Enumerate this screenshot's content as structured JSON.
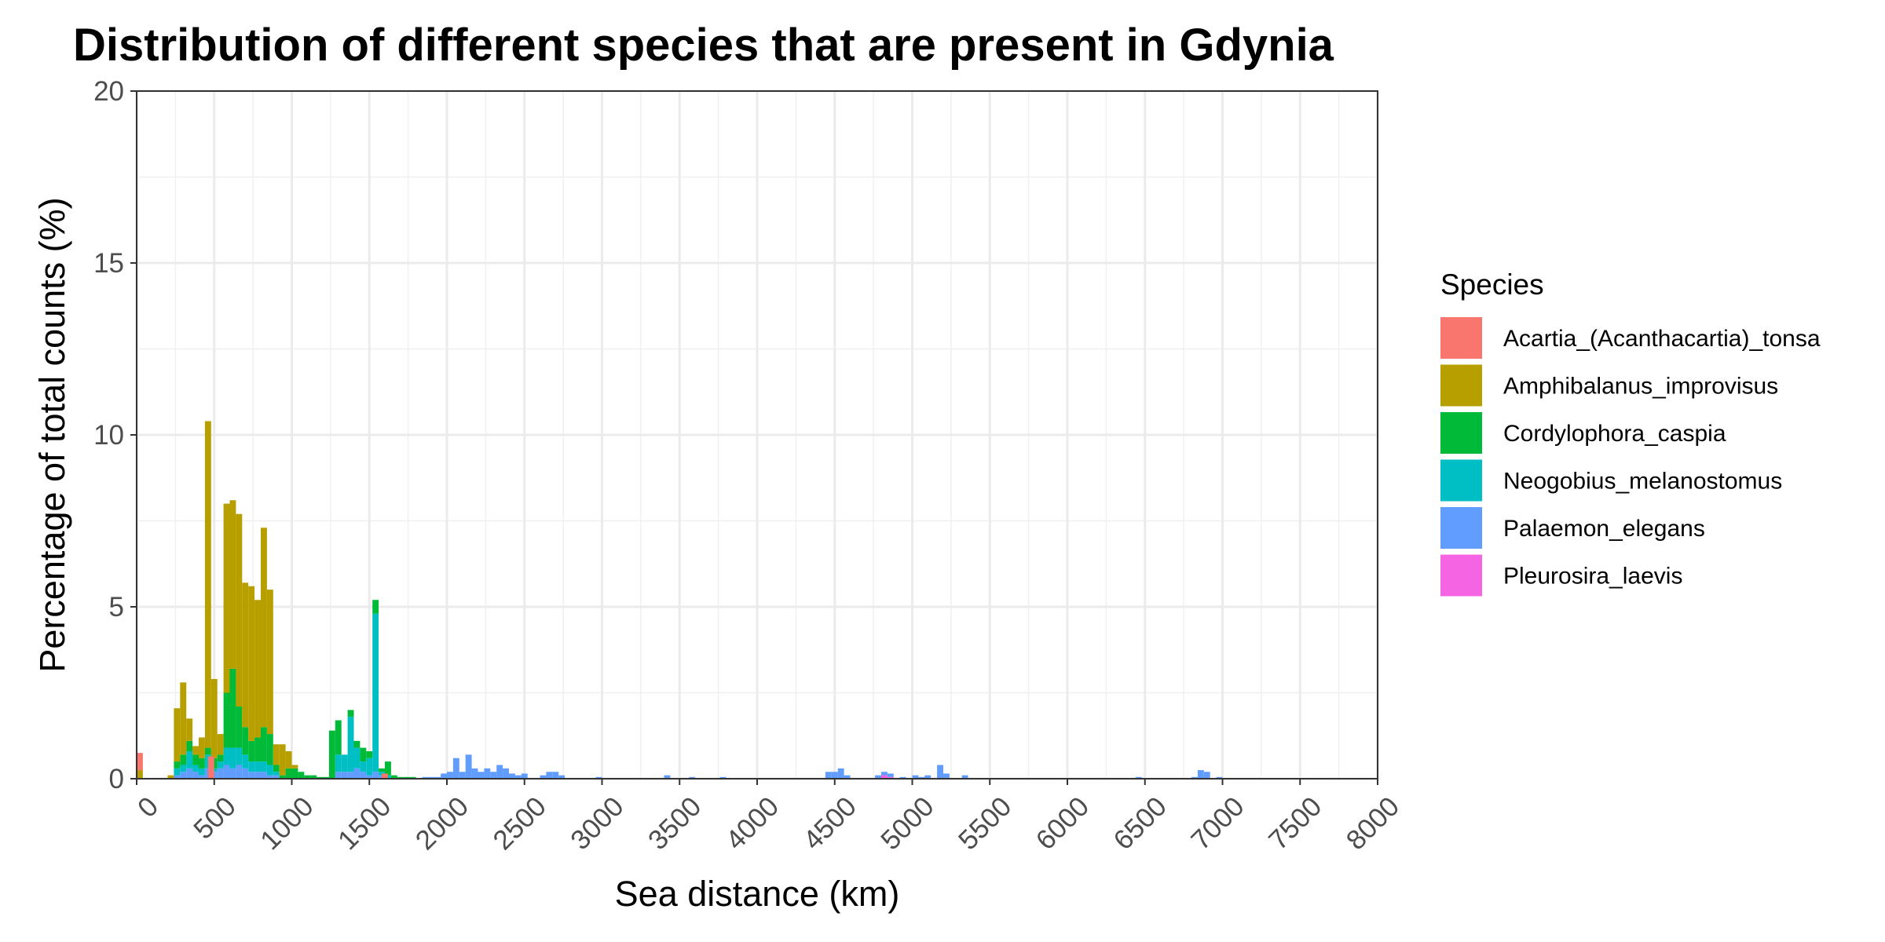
{
  "chart_data": {
    "type": "bar",
    "stacked": true,
    "title": "Distribution of different species that are present in Gdynia",
    "xlabel": "Sea distance (km)",
    "ylabel": "Percentage of total counts (%)",
    "xlim": [
      0,
      8000
    ],
    "ylim": [
      0,
      20
    ],
    "x_ticks": [
      0,
      500,
      1000,
      1500,
      2000,
      2500,
      3000,
      3500,
      4000,
      4500,
      5000,
      5500,
      6000,
      6500,
      7000,
      7500,
      8000
    ],
    "x_tick_labels": [
      "0",
      "500",
      "1000",
      "1500",
      "2000",
      "2500",
      "3000",
      "3500",
      "4000",
      "4500",
      "5000",
      "5500",
      "6000",
      "6500",
      "7000",
      "7500",
      "8000"
    ],
    "y_ticks": [
      0,
      5,
      10,
      15,
      20
    ],
    "y_tick_labels": [
      "0",
      "5",
      "10",
      "15",
      "20"
    ],
    "bin_width": 40,
    "grid": true,
    "legend_title": "Species",
    "legend_position": "right",
    "series": [
      {
        "name": "Acartia_(Acanthacartia)_tonsa",
        "color": "#F8766D",
        "points": [
          [
            20,
            0.5
          ],
          [
            480,
            0.65
          ],
          [
            1600,
            0.15
          ]
        ]
      },
      {
        "name": "Amphibalanus_improvisus",
        "color": "#B79F00",
        "points": [
          [
            20,
            0.25
          ],
          [
            220,
            0.1
          ],
          [
            260,
            1.55
          ],
          [
            300,
            2.1
          ],
          [
            340,
            0.65
          ],
          [
            380,
            0.25
          ],
          [
            420,
            0.6
          ],
          [
            460,
            9.5
          ],
          [
            500,
            2.3
          ],
          [
            540,
            0.6
          ],
          [
            580,
            5.5
          ],
          [
            620,
            4.9
          ],
          [
            660,
            5.6
          ],
          [
            700,
            4.2
          ],
          [
            740,
            4.5
          ],
          [
            780,
            4.0
          ],
          [
            820,
            5.8
          ],
          [
            860,
            4.2
          ],
          [
            900,
            0.6
          ],
          [
            940,
            0.9
          ],
          [
            980,
            0.5
          ],
          [
            1020,
            0.1
          ]
        ]
      },
      {
        "name": "Cordylophora_caspia",
        "color": "#00BA38",
        "points": [
          [
            260,
            0.2
          ],
          [
            300,
            0.3
          ],
          [
            340,
            0.3
          ],
          [
            380,
            0.3
          ],
          [
            420,
            0.3
          ],
          [
            460,
            0.2
          ],
          [
            500,
            0.3
          ],
          [
            540,
            0.2
          ],
          [
            580,
            1.6
          ],
          [
            620,
            2.3
          ],
          [
            660,
            1.2
          ],
          [
            700,
            0.8
          ],
          [
            740,
            0.6
          ],
          [
            780,
            0.7
          ],
          [
            820,
            1.0
          ],
          [
            860,
            0.9
          ],
          [
            900,
            0.2
          ],
          [
            940,
            0.1
          ],
          [
            980,
            0.3
          ],
          [
            1020,
            0.3
          ],
          [
            1060,
            0.2
          ],
          [
            1100,
            0.1
          ],
          [
            1140,
            0.1
          ],
          [
            1180,
            0.05
          ],
          [
            1220,
            0.05
          ],
          [
            1260,
            1.4
          ],
          [
            1300,
            1.0
          ],
          [
            1340,
            0.0
          ],
          [
            1380,
            0.2
          ],
          [
            1420,
            0.2
          ],
          [
            1460,
            0.4
          ],
          [
            1500,
            0.2
          ],
          [
            1540,
            0.4
          ],
          [
            1580,
            0.1
          ],
          [
            1620,
            0.4
          ],
          [
            1660,
            0.1
          ],
          [
            1700,
            0.05
          ],
          [
            1740,
            0.05
          ],
          [
            1780,
            0.05
          ]
        ]
      },
      {
        "name": "Neogobius_melanostomus",
        "color": "#00BFC4",
        "points": [
          [
            260,
            0.2
          ],
          [
            300,
            0.2
          ],
          [
            340,
            0.5
          ],
          [
            380,
            0.2
          ],
          [
            420,
            0.2
          ],
          [
            460,
            0.4
          ],
          [
            500,
            0.1
          ],
          [
            540,
            0.2
          ],
          [
            580,
            0.5
          ],
          [
            620,
            0.6
          ],
          [
            660,
            0.5
          ],
          [
            700,
            0.4
          ],
          [
            740,
            0.3
          ],
          [
            780,
            0.3
          ],
          [
            820,
            0.3
          ],
          [
            860,
            0.3
          ],
          [
            900,
            0.1
          ],
          [
            1300,
            0.5
          ],
          [
            1340,
            0.5
          ],
          [
            1380,
            1.6
          ],
          [
            1420,
            0.6
          ],
          [
            1460,
            0.3
          ],
          [
            1500,
            0.5
          ],
          [
            1540,
            4.6
          ],
          [
            1580,
            0.1
          ],
          [
            1620,
            0.1
          ]
        ]
      },
      {
        "name": "Palaemon_elegans",
        "color": "#619CFF",
        "points": [
          [
            260,
            0.1
          ],
          [
            300,
            0.2
          ],
          [
            340,
            0.3
          ],
          [
            380,
            0.2
          ],
          [
            420,
            0.1
          ],
          [
            460,
            0.3
          ],
          [
            500,
            0.2
          ],
          [
            540,
            0.3
          ],
          [
            580,
            0.4
          ],
          [
            620,
            0.3
          ],
          [
            660,
            0.4
          ],
          [
            700,
            0.3
          ],
          [
            740,
            0.2
          ],
          [
            780,
            0.2
          ],
          [
            820,
            0.2
          ],
          [
            860,
            0.1
          ],
          [
            900,
            0.1
          ],
          [
            1300,
            0.2
          ],
          [
            1340,
            0.2
          ],
          [
            1380,
            0.2
          ],
          [
            1420,
            0.3
          ],
          [
            1460,
            0.2
          ],
          [
            1500,
            0.1
          ],
          [
            1540,
            0.2
          ],
          [
            1580,
            0.1
          ],
          [
            1860,
            0.05
          ],
          [
            1900,
            0.05
          ],
          [
            1940,
            0.05
          ],
          [
            1980,
            0.15
          ],
          [
            2020,
            0.2
          ],
          [
            2060,
            0.6
          ],
          [
            2100,
            0.2
          ],
          [
            2140,
            0.7
          ],
          [
            2180,
            0.3
          ],
          [
            2220,
            0.2
          ],
          [
            2260,
            0.3
          ],
          [
            2300,
            0.2
          ],
          [
            2340,
            0.4
          ],
          [
            2380,
            0.3
          ],
          [
            2420,
            0.15
          ],
          [
            2460,
            0.1
          ],
          [
            2500,
            0.15
          ],
          [
            2620,
            0.1
          ],
          [
            2660,
            0.2
          ],
          [
            2700,
            0.2
          ],
          [
            2740,
            0.1
          ],
          [
            2980,
            0.05
          ],
          [
            3420,
            0.1
          ],
          [
            3580,
            0.05
          ],
          [
            3780,
            0.05
          ],
          [
            4460,
            0.2
          ],
          [
            4500,
            0.2
          ],
          [
            4540,
            0.3
          ],
          [
            4580,
            0.1
          ],
          [
            4780,
            0.1
          ],
          [
            4820,
            0.1
          ],
          [
            4860,
            0.1
          ],
          [
            4940,
            0.05
          ],
          [
            5020,
            0.1
          ],
          [
            5060,
            0.05
          ],
          [
            5100,
            0.1
          ],
          [
            5180,
            0.4
          ],
          [
            5220,
            0.15
          ],
          [
            5340,
            0.1
          ],
          [
            6460,
            0.05
          ],
          [
            6820,
            0.05
          ],
          [
            6860,
            0.25
          ],
          [
            6900,
            0.2
          ],
          [
            6980,
            0.05
          ]
        ]
      },
      {
        "name": "Pleurosira_laevis",
        "color": "#F564E3",
        "points": [
          [
            4820,
            0.1
          ],
          [
            4860,
            0.05
          ]
        ]
      }
    ]
  }
}
